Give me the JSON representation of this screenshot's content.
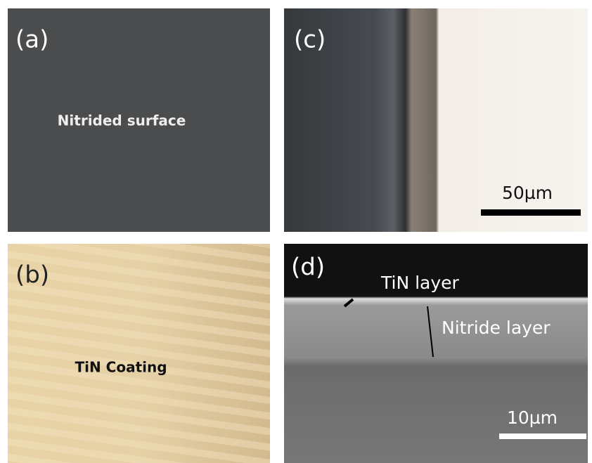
{
  "panels": [
    {
      "label": "(a)",
      "caption": "Nitrided surface"
    },
    {
      "label": "(b)",
      "caption": "TiN Coating"
    },
    {
      "label": "(c)",
      "scale_bar": "50µm"
    },
    {
      "label": "(d)",
      "annotations": [
        "TiN layer",
        "Nitride layer"
      ],
      "scale_bar": "10µm"
    }
  ]
}
